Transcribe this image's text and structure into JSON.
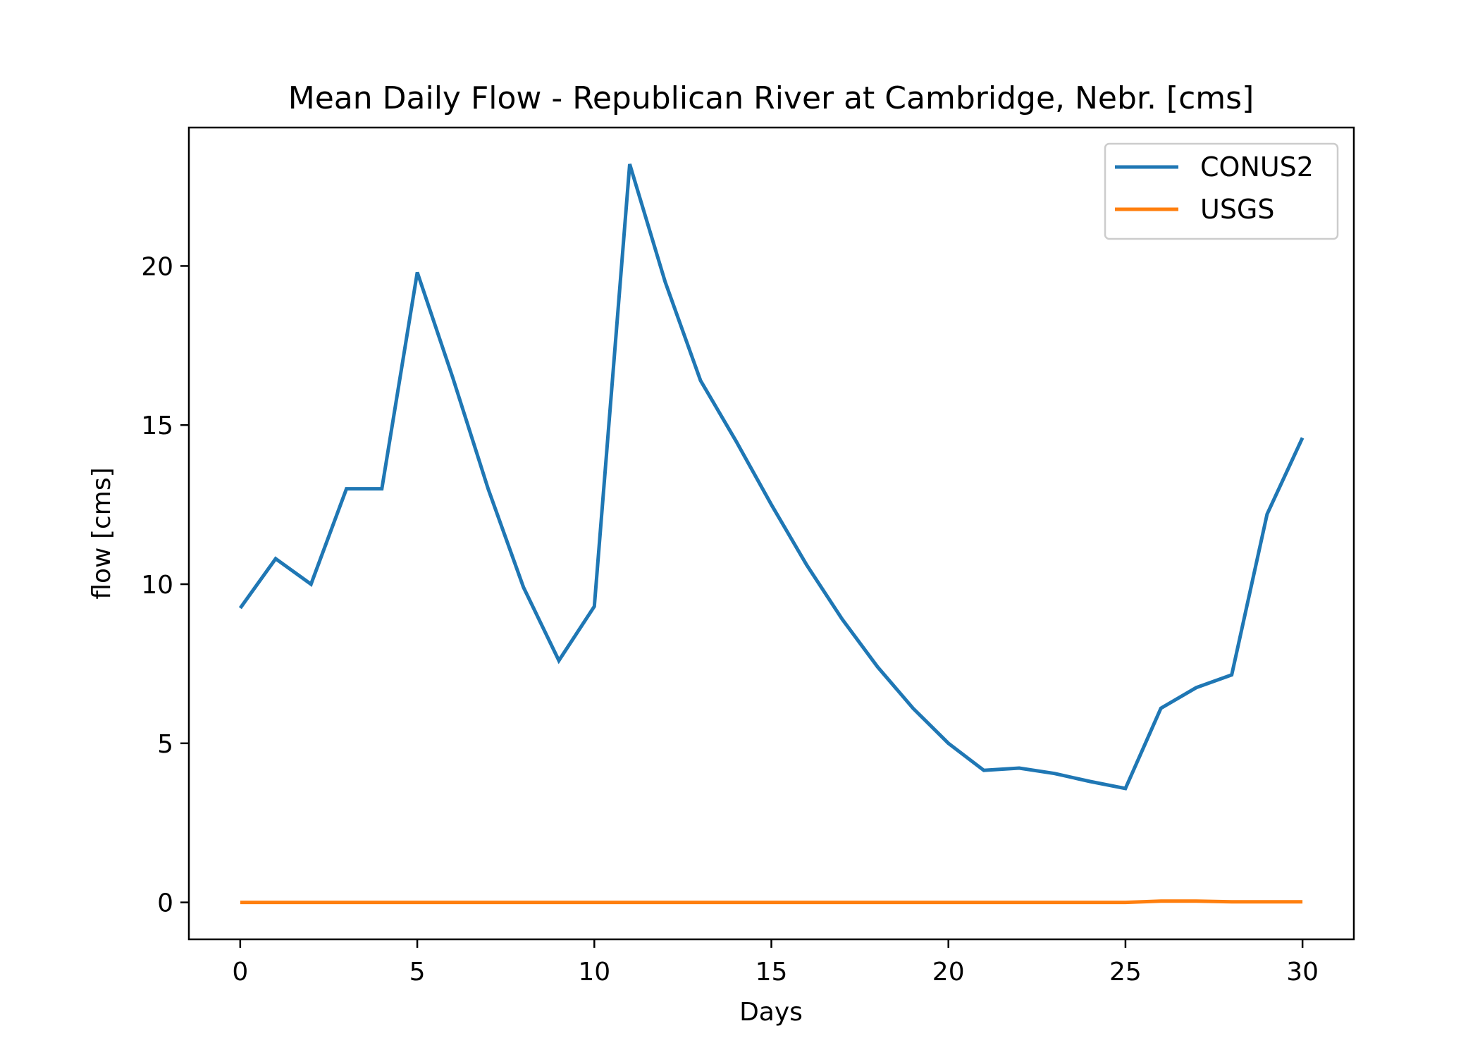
{
  "chart_data": {
    "type": "line",
    "title": "Mean Daily Flow - Republican River at Cambridge, Nebr. [cms]",
    "xlabel": "Days",
    "ylabel": "flow [cms]",
    "xlim": [
      -1.45,
      31.45
    ],
    "ylim": [
      -1.16,
      24.35
    ],
    "xticks": [
      0,
      5,
      10,
      15,
      20,
      25,
      30
    ],
    "yticks": [
      0,
      5,
      10,
      15,
      20
    ],
    "grid": false,
    "legend_position": "top-right",
    "x": [
      0,
      1,
      2,
      3,
      4,
      5,
      6,
      7,
      8,
      9,
      10,
      11,
      12,
      13,
      14,
      15,
      16,
      17,
      18,
      19,
      20,
      21,
      22,
      23,
      24,
      25,
      26,
      27,
      28,
      29,
      30
    ],
    "series": [
      {
        "name": "CONUS2",
        "color": "#1f77b4",
        "values": [
          9.25,
          10.8,
          10.0,
          13.0,
          13.0,
          19.8,
          16.5,
          13.0,
          9.9,
          7.6,
          9.3,
          23.2,
          19.5,
          16.4,
          14.5,
          12.5,
          10.6,
          8.9,
          7.4,
          6.1,
          5.0,
          4.15,
          4.22,
          4.05,
          3.8,
          3.58,
          6.1,
          6.75,
          7.15,
          12.2,
          14.6
        ]
      },
      {
        "name": "USGS",
        "color": "#ff7f0e",
        "values": [
          0.0,
          0.0,
          0.0,
          0.0,
          0.0,
          0.0,
          0.0,
          0.0,
          0.0,
          0.0,
          0.0,
          0.0,
          0.0,
          0.0,
          0.0,
          0.0,
          0.0,
          0.0,
          0.0,
          0.0,
          0.0,
          0.0,
          0.0,
          0.0,
          0.0,
          0.0,
          0.04,
          0.04,
          0.02,
          0.02,
          0.02
        ]
      }
    ]
  }
}
